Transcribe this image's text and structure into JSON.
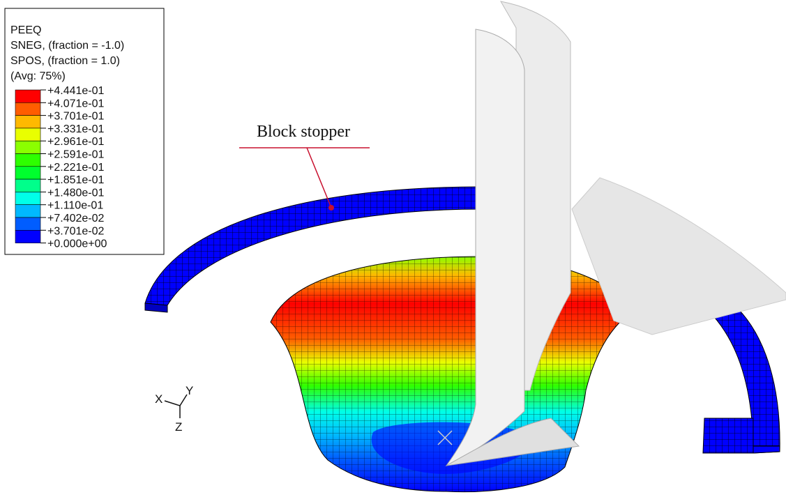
{
  "legend": {
    "title_lines": [
      "PEEQ",
      "SNEG, (fraction = -1.0)",
      "SPOS, (fraction = 1.0)",
      "(Avg: 75%)"
    ],
    "levels": [
      "+4.441e-01",
      "+4.071e-01",
      "+3.701e-01",
      "+3.331e-01",
      "+2.961e-01",
      "+2.591e-01",
      "+2.221e-01",
      "+1.851e-01",
      "+1.480e-01",
      "+1.110e-01",
      "+7.402e-02",
      "+3.701e-02",
      "+0.000e+00"
    ],
    "colors": [
      "#ff0000",
      "#ff5d00",
      "#ffb900",
      "#e9ff00",
      "#8bff00",
      "#2eff00",
      "#00ff2e",
      "#00ff8b",
      "#00ffe8",
      "#00b9ff",
      "#005dff",
      "#0000ff"
    ]
  },
  "annotation": "Block stopper",
  "triad": {
    "x": "X",
    "y": "Y",
    "z": "Z"
  }
}
